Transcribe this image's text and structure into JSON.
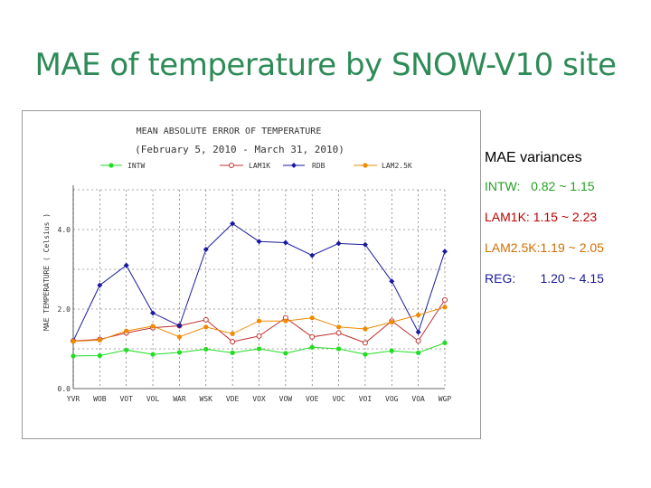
{
  "slide": {
    "title": "MAE of temperature by SNOW-V10 site"
  },
  "variances": {
    "heading": "MAE variances",
    "rows": [
      {
        "label": "INTW:",
        "range": "0.82 ~ 1.15",
        "color": "#22a022"
      },
      {
        "label": "LAM1K:",
        "range": "1.15 ~ 2.23",
        "color": "#c00000"
      },
      {
        "label": "LAM2.5K:",
        "range": "1.19 ~ 2.05",
        "color": "#d07000"
      },
      {
        "label": "REG:",
        "range": "1.20 ~ 4.15",
        "color": "#1a1a9a"
      }
    ]
  },
  "chart_data": {
    "type": "line",
    "title": "MEAN ABSOLUTE ERROR OF TEMPERATURE",
    "subtitle": "(February 5, 2010 - March 31, 2010)",
    "ylabel": "MAE TEMPERATURE ( Celsius )",
    "ylim": [
      0,
      5
    ],
    "yticks": [
      0,
      2,
      4
    ],
    "ytick_labels": [
      "0.0",
      "2.0",
      "4.0"
    ],
    "grid": true,
    "legend_placement": "top",
    "categories": [
      "YVR",
      "WOB",
      "VOT",
      "VOL",
      "WAR",
      "WSK",
      "VDE",
      "VOX",
      "VOW",
      "VOE",
      "VOC",
      "VOI",
      "VOG",
      "VOA",
      "WGP"
    ],
    "series": [
      {
        "name": "INTW",
        "color": "#22dd22",
        "marker": "dot",
        "values": [
          0.82,
          0.83,
          0.97,
          0.86,
          0.91,
          0.99,
          0.9,
          1.0,
          0.89,
          1.04,
          1.0,
          0.86,
          0.95,
          0.9,
          1.15
        ]
      },
      {
        "name": "LAM1K",
        "color": "#c03030",
        "marker": "circle",
        "values": [
          1.2,
          1.24,
          1.4,
          1.53,
          1.58,
          1.73,
          1.18,
          1.32,
          1.78,
          1.3,
          1.4,
          1.15,
          1.7,
          1.2,
          2.23
        ]
      },
      {
        "name": "RDB",
        "color": "#1a1aa0",
        "marker": "diamond",
        "values": [
          1.2,
          2.6,
          3.1,
          1.9,
          1.58,
          3.5,
          4.15,
          3.7,
          3.67,
          3.35,
          3.65,
          3.62,
          2.7,
          1.42,
          3.45
        ]
      },
      {
        "name": "LAM2.5K",
        "color": "#f08a00",
        "marker": "dot",
        "values": [
          1.19,
          1.22,
          1.45,
          1.57,
          1.3,
          1.55,
          1.38,
          1.7,
          1.7,
          1.78,
          1.55,
          1.5,
          1.67,
          1.85,
          2.05
        ]
      }
    ]
  }
}
